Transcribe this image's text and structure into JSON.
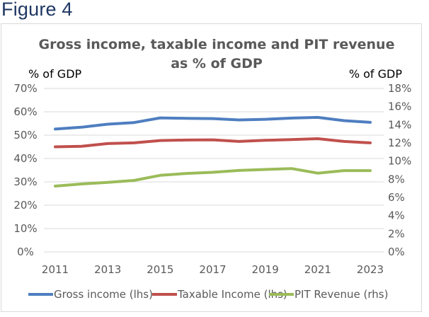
{
  "figure_heading": "Figure 4",
  "chart_data": {
    "type": "line",
    "title": [
      "Gross income, taxable income and PIT revenue",
      "as % of GDP"
    ],
    "ylabel_left": "% of GDP",
    "ylabel_right": "% of GDP",
    "xlabel": "",
    "x": [
      2011,
      2012,
      2013,
      2014,
      2015,
      2016,
      2017,
      2018,
      2019,
      2020,
      2021,
      2022,
      2023
    ],
    "x_tick_labels": [
      "2011",
      "2013",
      "2015",
      "2017",
      "2019",
      "2021",
      "2023"
    ],
    "x_tick_values": [
      2011,
      2013,
      2015,
      2017,
      2019,
      2021,
      2023
    ],
    "ylim_left": [
      0,
      70
    ],
    "ylim_right": [
      0,
      18
    ],
    "y_ticks_left": [
      "0%",
      "10%",
      "20%",
      "30%",
      "40%",
      "50%",
      "60%",
      "70%"
    ],
    "y_ticks_right": [
      "0%",
      "2%",
      "4%",
      "6%",
      "8%",
      "10%",
      "12%",
      "14%",
      "16%",
      "18%"
    ],
    "grid": true,
    "legend_position": "bottom",
    "series": [
      {
        "name": "Gross income (lhs)",
        "axis": "left",
        "color": "#4F7EC0",
        "values": [
          52.6,
          53.4,
          54.7,
          55.4,
          57.4,
          57.2,
          57.1,
          56.5,
          56.8,
          57.3,
          57.6,
          56.2,
          55.5
        ]
      },
      {
        "name": "Taxable Income (lhs)",
        "axis": "left",
        "color": "#C0504D",
        "values": [
          45.0,
          45.2,
          46.4,
          46.7,
          47.7,
          47.9,
          48.0,
          47.3,
          47.8,
          48.1,
          48.5,
          47.3,
          46.7
        ]
      },
      {
        "name": "PIT Revenue (rhs)",
        "axis": "right",
        "color": "#9BBB59",
        "values": [
          7.25,
          7.48,
          7.66,
          7.87,
          8.43,
          8.64,
          8.77,
          8.97,
          9.08,
          9.18,
          8.67,
          8.95,
          8.95
        ]
      }
    ]
  }
}
